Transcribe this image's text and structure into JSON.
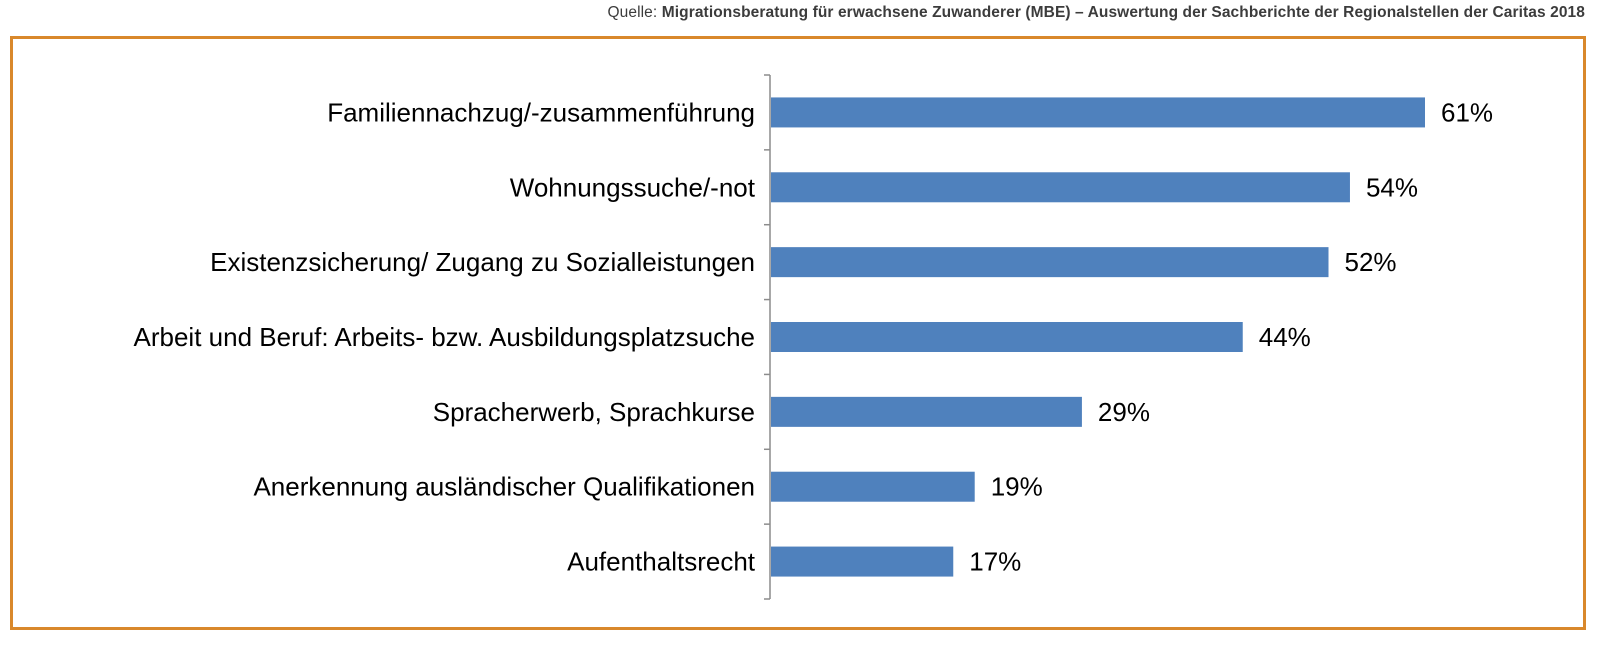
{
  "source": {
    "prefix": "Quelle: ",
    "text": "Migrationsberatung für erwachsene Zuwanderer (MBE) – Auswertung der Sachberichte der Regionalstellen der Caritas 2018"
  },
  "colors": {
    "bar": "#4f81bd",
    "frame": "#d9882b",
    "axis": "#8c8c8c"
  },
  "chart_data": {
    "type": "bar",
    "orientation": "horizontal",
    "categories": [
      "Familiennachzug/-zusammenführung",
      "Wohnungssuche/-not",
      "Existenzsicherung/ Zugang zu Sozialleistungen",
      "Arbeit und Beruf: Arbeits- bzw. Ausbildungsplatzsuche",
      "Spracherwerb, Sprachkurse",
      "Anerkennung ausländischer Qualifikationen",
      "Aufenthaltsrecht"
    ],
    "values": [
      61,
      54,
      52,
      44,
      29,
      19,
      17
    ],
    "value_labels": [
      "61%",
      "54%",
      "52%",
      "44%",
      "29%",
      "19%",
      "17%"
    ],
    "unit": "%",
    "xlim": [
      0,
      70
    ],
    "title": "",
    "xlabel": "",
    "ylabel": "",
    "grid": false,
    "legend": "none"
  }
}
